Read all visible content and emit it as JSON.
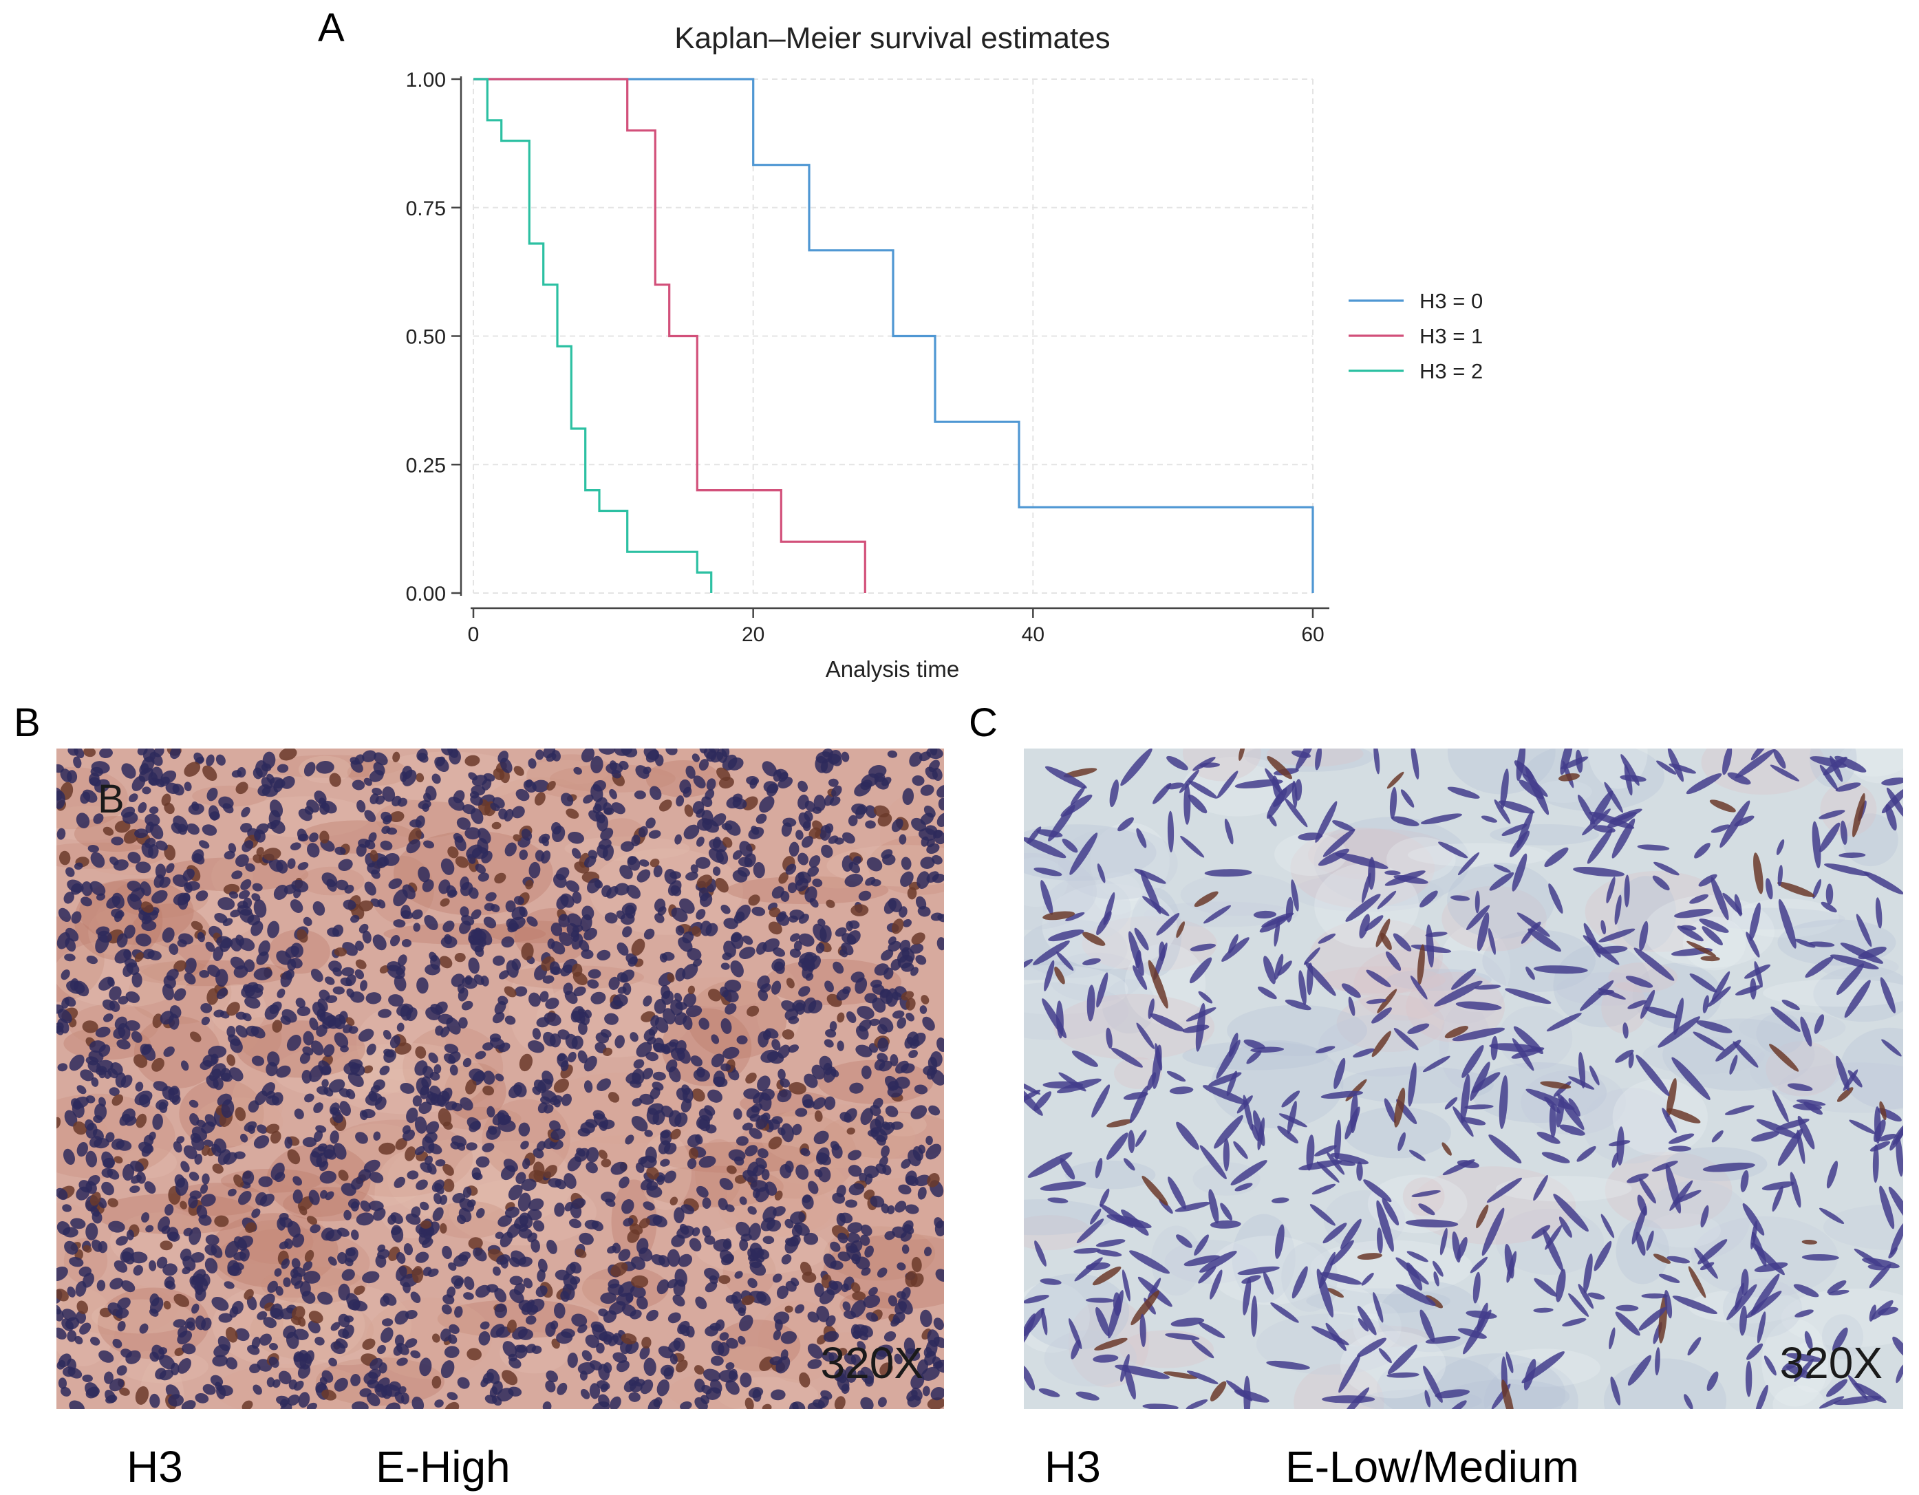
{
  "panels": {
    "a_label": "A",
    "b_label": "B",
    "c_label": "C"
  },
  "chart_data": {
    "type": "line",
    "title": "Kaplan–Meier survival estimates",
    "xlabel": "Analysis time",
    "ylabel": "",
    "xlim": [
      0,
      60
    ],
    "ylim": [
      0,
      1
    ],
    "x_ticks": [
      0,
      20,
      40,
      60
    ],
    "y_ticks": [
      0.0,
      0.25,
      0.5,
      0.75,
      1.0
    ],
    "x_tick_labels": [
      "0",
      "20",
      "40",
      "60"
    ],
    "y_tick_labels": [
      "0.00",
      "0.25",
      "0.50",
      "0.75",
      "1.00"
    ],
    "grid": true,
    "legend_position": "right",
    "series": [
      {
        "name": "H3 = 0",
        "color": "#4f97d3",
        "points": [
          [
            0,
            1.0
          ],
          [
            20,
            1.0
          ],
          [
            20,
            0.833
          ],
          [
            24,
            0.833
          ],
          [
            24,
            0.667
          ],
          [
            30,
            0.667
          ],
          [
            30,
            0.5
          ],
          [
            33,
            0.5
          ],
          [
            33,
            0.333
          ],
          [
            39,
            0.333
          ],
          [
            39,
            0.167
          ],
          [
            60,
            0.167
          ],
          [
            60,
            0.0
          ]
        ]
      },
      {
        "name": "H3 = 1",
        "color": "#d2507a",
        "points": [
          [
            0,
            1.0
          ],
          [
            11,
            1.0
          ],
          [
            11,
            0.9
          ],
          [
            13,
            0.9
          ],
          [
            13,
            0.6
          ],
          [
            14,
            0.6
          ],
          [
            14,
            0.5
          ],
          [
            16,
            0.5
          ],
          [
            16,
            0.2
          ],
          [
            22,
            0.2
          ],
          [
            22,
            0.1
          ],
          [
            28,
            0.1
          ],
          [
            28,
            0.0
          ]
        ]
      },
      {
        "name": "H3 = 2",
        "color": "#2cc0a2",
        "points": [
          [
            0,
            1.0
          ],
          [
            1,
            1.0
          ],
          [
            1,
            0.92
          ],
          [
            2,
            0.92
          ],
          [
            2,
            0.88
          ],
          [
            4,
            0.88
          ],
          [
            4,
            0.68
          ],
          [
            5,
            0.68
          ],
          [
            5,
            0.6
          ],
          [
            6,
            0.6
          ],
          [
            6,
            0.48
          ],
          [
            7,
            0.48
          ],
          [
            7,
            0.32
          ],
          [
            8,
            0.32
          ],
          [
            8,
            0.2
          ],
          [
            9,
            0.2
          ],
          [
            9,
            0.16
          ],
          [
            11,
            0.16
          ],
          [
            11,
            0.08
          ],
          [
            16,
            0.08
          ],
          [
            16,
            0.04
          ],
          [
            17,
            0.04
          ],
          [
            17,
            0.0
          ]
        ]
      }
    ]
  },
  "micrographs": {
    "b": {
      "inner_label": "B",
      "magnification": "320X",
      "caption_marker": "H3",
      "caption_level": "E-High",
      "stain_background": "#d7aa9e",
      "nucleus_color": "#2e2a5c"
    },
    "c": {
      "magnification": "320X",
      "caption_marker": "H3",
      "caption_level": "E-Low/Medium",
      "stain_background": "#d4dde2",
      "nucleus_color": "#433d8c"
    }
  }
}
